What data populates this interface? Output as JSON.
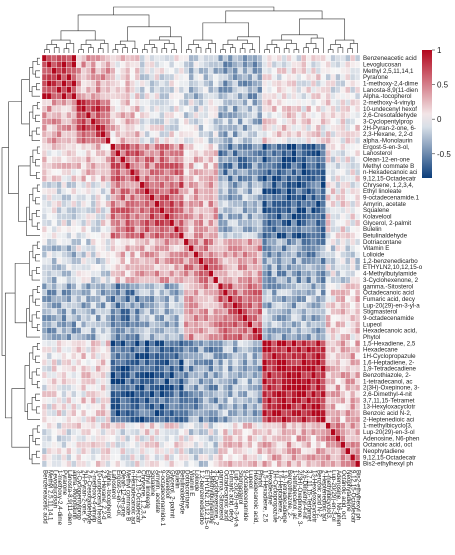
{
  "chart_data": {
    "type": "heatmap",
    "title": "",
    "xlabel": "",
    "ylabel": "",
    "color_scale": {
      "min": -0.85,
      "max": 1,
      "ticks": [
        1,
        0.5,
        0,
        -0.5
      ],
      "tick_labels": [
        "1",
        "0.5",
        "0",
        "-0.5"
      ],
      "low_color": "#0b3d7a",
      "mid_color": "#f7f7f7",
      "high_color": "#b2071d"
    },
    "row_labels": [
      "Benzeneacetic acid",
      "Levoglucosan",
      "Methyl 2,5,11,14,1",
      "Pyrarone",
      "1-methoxy-2,4-dime",
      "Lanosta-8,9(11-dien",
      "Alpha.-tocopherol",
      "2-methoxy-4-vinylp",
      "10-undecenyl hexof",
      "2,6-Cresotaldehyde",
      "3-Cyclopentylprop",
      "2H-Pyran-2-one, 6-",
      "2,3-Hexane, 2,2-d",
      "alpha.-Monolaurin",
      "Ergost-5-en-3-ol,",
      "Lanosterol",
      "Olean-12-en-one",
      "Methyl commate B",
      "n-Hexadecanoic aci",
      "9,12,15-Octadecatr",
      "Chrysene, 1,2,3,4,",
      "Ethyl linoleate",
      "9-octadecenamide.1",
      "Amyrin, acetate",
      "Squalene",
      "Kolavelool",
      "Glycerol, 2-palmit",
      "Bulelin",
      "Betulinaldehyde",
      "Dotriacontane",
      "Vitamin E",
      "Lolioide",
      "1,2-benzenedicarbo",
      "ETHYLN2,10,12,15-o",
      "4-Methylbutylamide",
      "3-Cyclohexenone, 2",
      "gamma.-Sitosterol",
      "Octadecanoic acid",
      "Fumaric acid, decy",
      "Lup-20(29)-en-3-yl-a",
      "Stigmasterol",
      "9-octadecenamide",
      "Lupeol",
      "Hexadecanoic acid,",
      "Phytol",
      "1,5-Hexadiene, 2,5",
      "Hexadecane",
      "1H-Cyclopropazule",
      "1,6-Heptadiene, 2-",
      "1,9-Tetradecadiene",
      "Benzothiazole, 2-",
      "1-tetradecanol, ac",
      "2(3H)-Oxepinone, 3-",
      "2,6-Dimethyl-4-nit",
      "3,7,11,15-Tetramet",
      "13-Hexyloxacyclotr",
      "Benzoic acid N-2,",
      "2-Heptenedioic aci",
      "1-methylbicyclo[3,",
      "Lup-20(29)-en-3-ol",
      "Adenosine, N6-phen",
      "Octanoic acid, oct",
      "Neophytadiene",
      "9,12,15-Octadecatr",
      "Bis2-ethylhexyl ph"
    ],
    "col_labels": [
      "Benzeneacetic acid",
      "Methyl 2,5,11,14,1",
      "Levoglucosan",
      "1-methoxy-2,4-dime",
      "Pyrarone",
      "Lanosta-8,9(11-dien",
      "alpha.-Monolaurin",
      "3-Cyclopentylprop",
      "2H-Pyran-2-one, 6-",
      "2,6-Cresotaldehyde",
      "2-methoxy-4-vinylp",
      "10-undecenyl hexof",
      "2,3-Hexane, 2,2-d",
      "Alpha.-tocopherol",
      "Lanosterol",
      "Ergost-5-en-3-ol,",
      "Olean-12-en-one",
      "Methyl commate B",
      "n-Hexadecanoic aci",
      "9,12,15-Octadecatr",
      "Chrysene, 1,2,3,4,",
      "Ethyl linoleate",
      "Squalene",
      "Amyrin, acetate",
      "9-octadecenamide.1",
      "Kolavelool",
      "Glycerol, 2-palmit",
      "Bulelin",
      "Betulinaldehyde",
      "Dotriacontane",
      "Vitamin E",
      "Lolioide",
      "1,2-benzenedicarbo",
      "ETHYLN2,10,12,15-o",
      "4-Methylbutylamide",
      "3-Cyclohexenone, 2",
      "gamma.-Sitosterol",
      "Octadecanoic acid",
      "Fumaric acid, decy",
      "Lup-20(29)-en-3-yl-a",
      "Stigmasterol",
      "9-octadecenamide",
      "Lupeol",
      "Hexadecanoic acid,",
      "Phytol",
      "1,5-Hexadiene, 2,5",
      "Hexadecane",
      "1H-Cyclopropazule",
      "1,6-Heptadiene, 2-",
      "1,9-Tetradecadiene",
      "Benzothiazole, 2-",
      "1-tetradecanol, ac",
      "2(3H)-Oxepinone, 3-",
      "2,6-Dimethyl-4-nit",
      "3,7,11,15-Tetramet",
      "13-Hexyloxacyclotr",
      "Benzoic acid N-2,",
      "2-Heptenedioic aci",
      "1-methylbicyclo[3,",
      "Lup-20(29)-en-3-ol",
      "Adenosine, N6-phen",
      "Octanoic acid, oct",
      "Neophytadiene",
      "9,12,15-Octadecatr",
      "Bis2-ethylhexyl ph"
    ],
    "clusters": [
      {
        "range": [
          0,
          6
        ],
        "within": 0.85,
        "to_next": 0.3
      },
      {
        "range": [
          7,
          13
        ],
        "within": 0.7,
        "to_next": 0.2
      },
      {
        "range": [
          14,
          19
        ],
        "within": 0.55,
        "to_next": 0.5
      },
      {
        "range": [
          20,
          28
        ],
        "within": 0.6,
        "to_next": 0.3
      },
      {
        "range": [
          29,
          35
        ],
        "within": 0.45,
        "to_next": 0.35
      },
      {
        "range": [
          36,
          44
        ],
        "within": 0.55,
        "to_next": -0.3
      },
      {
        "range": [
          45,
          57
        ],
        "within": 0.9,
        "to_next": 0.25
      },
      {
        "range": [
          58,
          64
        ],
        "within": 0.4,
        "to_next": 0.0
      }
    ],
    "block_values": [
      [
        0.85,
        0.3,
        0.1,
        -0.05,
        -0.2,
        -0.35,
        0.05,
        0.0
      ],
      [
        0.3,
        0.7,
        0.2,
        0.0,
        -0.1,
        -0.3,
        0.1,
        0.05
      ],
      [
        0.1,
        0.2,
        0.55,
        0.5,
        0.2,
        -0.5,
        -0.7,
        0.0
      ],
      [
        -0.05,
        0.0,
        0.5,
        0.6,
        0.3,
        -0.3,
        -0.65,
        0.05
      ],
      [
        -0.2,
        -0.1,
        0.2,
        0.3,
        0.45,
        0.35,
        -0.4,
        -0.1
      ],
      [
        -0.35,
        -0.3,
        -0.5,
        -0.3,
        0.35,
        0.55,
        -0.3,
        0.15
      ],
      [
        0.05,
        0.1,
        -0.7,
        -0.65,
        -0.4,
        -0.3,
        0.9,
        0.25
      ],
      [
        0.0,
        0.05,
        0.0,
        0.05,
        -0.1,
        0.15,
        0.25,
        0.4
      ]
    ],
    "legend_placement": "right",
    "dendrogram_top": true,
    "dendrogram_left": true,
    "grid": true
  }
}
